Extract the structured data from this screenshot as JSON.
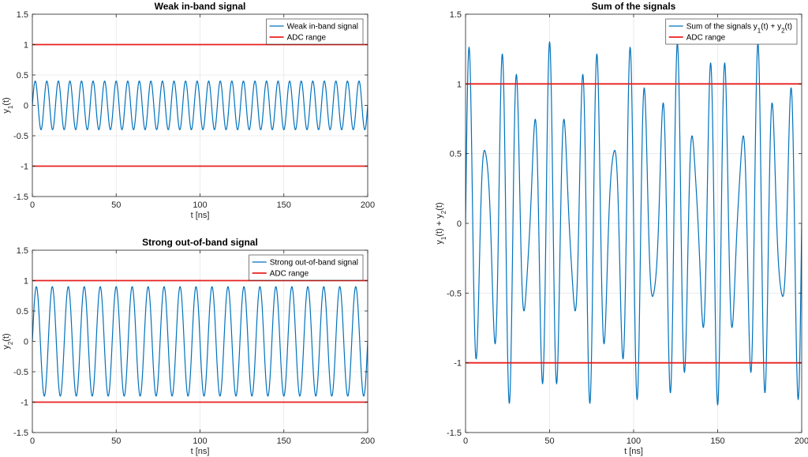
{
  "colors": {
    "signal": "#0072BD",
    "adc": "#E8201F",
    "grid": "#e6e6e6",
    "axis": "#262626"
  },
  "chart_data": [
    {
      "type": "line",
      "id": "weak",
      "title": "Weak in-band signal",
      "xlabel": "t [ns]",
      "ylabel": "y",
      "ylabel_sub": "1",
      "ylabel_suffix": "(t)",
      "xlim": [
        0,
        200
      ],
      "ylim": [
        -1.5,
        1.5
      ],
      "xticks": [
        0,
        50,
        100,
        150,
        200
      ],
      "yticks": [
        -1.5,
        -1,
        -0.5,
        0,
        0.5,
        1,
        1.5
      ],
      "grid": true,
      "legend": {
        "position": "top-right",
        "entries": [
          "Weak in-band signal",
          "ADC range"
        ]
      },
      "series": [
        {
          "name": "Weak in-band signal",
          "kind": "sinusoid",
          "amplitude": 0.4,
          "frequency_ghz": 0.145,
          "t_range": [
            0,
            200
          ]
        },
        {
          "name": "ADC range",
          "kind": "hlines",
          "values": [
            1,
            -1
          ]
        }
      ]
    },
    {
      "type": "line",
      "id": "strong",
      "title": "Strong out-of-band signal",
      "xlabel": "t [ns]",
      "ylabel": "y",
      "ylabel_sub": "2",
      "ylabel_suffix": "(t)",
      "xlim": [
        0,
        200
      ],
      "ylim": [
        -1.5,
        1.5
      ],
      "xticks": [
        0,
        50,
        100,
        150,
        200
      ],
      "yticks": [
        -1.5,
        -1,
        -0.5,
        0,
        0.5,
        1,
        1.5
      ],
      "grid": true,
      "legend": {
        "position": "top-right",
        "entries": [
          "Strong out-of-band signal",
          "ADC range"
        ]
      },
      "series": [
        {
          "name": "Strong out-of-band signal",
          "kind": "sinusoid",
          "amplitude": 0.9,
          "frequency_ghz": 0.105,
          "t_range": [
            0,
            200
          ]
        },
        {
          "name": "ADC range",
          "kind": "hlines",
          "values": [
            1,
            -1
          ]
        }
      ]
    },
    {
      "type": "line",
      "id": "sum",
      "title": "Sum of the signals",
      "xlabel": "t [ns]",
      "ylabel_parts": [
        "y",
        "1",
        "(t) + y",
        "2",
        "(t)"
      ],
      "xlim": [
        0,
        200
      ],
      "ylim": [
        -1.5,
        1.5
      ],
      "xticks": [
        0,
        50,
        100,
        150,
        200
      ],
      "yticks": [
        -1.5,
        -1,
        -0.5,
        0,
        0.5,
        1,
        1.5
      ],
      "grid": true,
      "legend": {
        "position": "top-right",
        "entries_parts": [
          [
            "Sum of the signals y",
            "1",
            "(t) + y",
            "2",
            "(t)"
          ]
        ],
        "entries": [
          "ADC range"
        ]
      },
      "series": [
        {
          "name": "Sum of the signals",
          "kind": "sum",
          "components": [
            {
              "amplitude": 0.4,
              "frequency_ghz": 0.145
            },
            {
              "amplitude": 0.9,
              "frequency_ghz": 0.105
            }
          ],
          "t_range": [
            0,
            200
          ]
        },
        {
          "name": "ADC range",
          "kind": "hlines",
          "values": [
            1,
            -1
          ]
        }
      ]
    }
  ]
}
